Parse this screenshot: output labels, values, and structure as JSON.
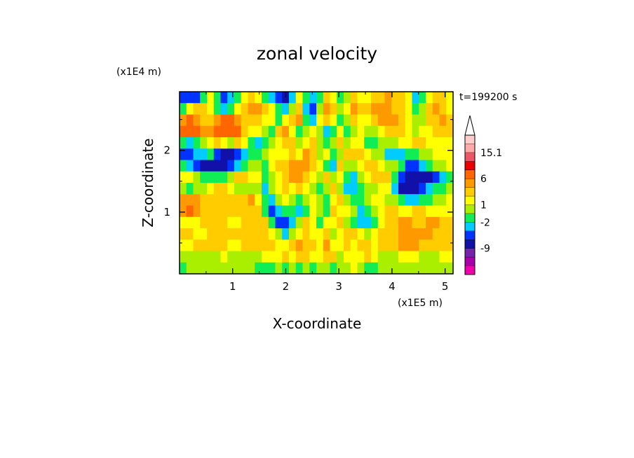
{
  "chart_data": {
    "type": "heatmap",
    "title": "zonal velocity",
    "xlabel": "X-coordinate",
    "ylabel": "Z-coordinate",
    "x_unit_label": "(x1E5 m)",
    "y_unit_label": "(x1E4 m)",
    "time_label": "t=199200 s",
    "xlim": [
      0,
      5.15
    ],
    "ylim": [
      0,
      2.95
    ],
    "x_ticks": [
      1,
      2,
      3,
      4,
      5
    ],
    "y_ticks": [
      1,
      2
    ],
    "colorbar": {
      "labeled_ticks": [
        "15.1",
        "6",
        "1",
        "-2",
        "-9"
      ],
      "levels": [
        {
          "color": "#ee00aa"
        },
        {
          "color": "#aa00aa"
        },
        {
          "color": "#7722aa"
        },
        {
          "color": "#1111aa"
        },
        {
          "color": "#0033ff"
        },
        {
          "color": "#00ccff"
        },
        {
          "color": "#11ee55"
        },
        {
          "color": "#aaee00"
        },
        {
          "color": "#ffff00"
        },
        {
          "color": "#ffcc00"
        },
        {
          "color": "#ff9900"
        },
        {
          "color": "#ff6600"
        },
        {
          "color": "#ee0000"
        },
        {
          "color": "#ee5566"
        },
        {
          "color": "#ffaaaa"
        },
        {
          "color": "#ffcccc"
        }
      ]
    },
    "field": [
      [
        4,
        4,
        4,
        6,
        8,
        6,
        4,
        5,
        6,
        8,
        9,
        8,
        6,
        5,
        4,
        3,
        5,
        8,
        6,
        5,
        6,
        9,
        8,
        6,
        7,
        9,
        8,
        8,
        9,
        9,
        10,
        9,
        9,
        8,
        5,
        6,
        8,
        9,
        9,
        8
      ],
      [
        6,
        8,
        9,
        9,
        8,
        6,
        5,
        6,
        8,
        9,
        10,
        10,
        9,
        8,
        6,
        5,
        7,
        9,
        5,
        4,
        7,
        10,
        9,
        7,
        8,
        10,
        9,
        9,
        10,
        10,
        10,
        9,
        9,
        8,
        6,
        7,
        9,
        10,
        9,
        8
      ],
      [
        10,
        11,
        10,
        9,
        9,
        10,
        11,
        11,
        10,
        9,
        9,
        9,
        8,
        8,
        6,
        8,
        9,
        10,
        6,
        5,
        8,
        9,
        8,
        6,
        7,
        9,
        8,
        8,
        9,
        10,
        10,
        10,
        9,
        8,
        7,
        7,
        9,
        9,
        10,
        9
      ],
      [
        11,
        11,
        11,
        10,
        10,
        11,
        11,
        11,
        11,
        9,
        8,
        8,
        7,
        6,
        9,
        10,
        8,
        6,
        7,
        8,
        7,
        5,
        6,
        8,
        6,
        7,
        8,
        7,
        7,
        8,
        9,
        9,
        9,
        8,
        7,
        8,
        8,
        9,
        9,
        9
      ],
      [
        6,
        5,
        6,
        7,
        8,
        9,
        8,
        7,
        9,
        8,
        6,
        5,
        6,
        7,
        8,
        9,
        9,
        7,
        8,
        9,
        7,
        6,
        7,
        9,
        7,
        8,
        8,
        6,
        6,
        7,
        7,
        7,
        8,
        8,
        9,
        9,
        8,
        8,
        8,
        8
      ],
      [
        4,
        4,
        5,
        5,
        6,
        4,
        3,
        3,
        4,
        5,
        6,
        6,
        7,
        8,
        8,
        8,
        9,
        8,
        10,
        9,
        7,
        8,
        6,
        7,
        9,
        9,
        9,
        8,
        7,
        7,
        5,
        5,
        5,
        6,
        6,
        7,
        7,
        8,
        8,
        8
      ],
      [
        6,
        5,
        4,
        3,
        3,
        3,
        3,
        4,
        5,
        6,
        7,
        7,
        6,
        8,
        9,
        9,
        10,
        10,
        10,
        9,
        8,
        6,
        5,
        9,
        7,
        7,
        8,
        9,
        9,
        8,
        7,
        7,
        6,
        4,
        4,
        5,
        6,
        7,
        7,
        8
      ],
      [
        8,
        8,
        7,
        6,
        6,
        6,
        6,
        7,
        9,
        9,
        8,
        8,
        6,
        7,
        8,
        9,
        10,
        10,
        9,
        8,
        7,
        9,
        7,
        8,
        6,
        5,
        7,
        8,
        9,
        9,
        9,
        6,
        4,
        3,
        3,
        3,
        3,
        4,
        5,
        6
      ],
      [
        7,
        6,
        7,
        7,
        8,
        9,
        9,
        8,
        7,
        7,
        7,
        7,
        5,
        7,
        8,
        9,
        8,
        9,
        8,
        7,
        6,
        7,
        9,
        7,
        5,
        5,
        6,
        7,
        7,
        8,
        8,
        5,
        3,
        3,
        3,
        4,
        5,
        6,
        6,
        7
      ],
      [
        10,
        10,
        10,
        9,
        9,
        9,
        9,
        9,
        9,
        9,
        10,
        8,
        6,
        5,
        7,
        8,
        7,
        6,
        7,
        8,
        7,
        6,
        8,
        9,
        7,
        6,
        6,
        7,
        8,
        8,
        7,
        7,
        6,
        5,
        5,
        6,
        6,
        7,
        7,
        8
      ],
      [
        10,
        11,
        10,
        9,
        9,
        9,
        9,
        9,
        9,
        9,
        9,
        9,
        6,
        4,
        5,
        6,
        6,
        5,
        6,
        8,
        7,
        6,
        9,
        8,
        8,
        7,
        5,
        6,
        7,
        8,
        9,
        9,
        8,
        8,
        9,
        9,
        8,
        8,
        8,
        8
      ],
      [
        8,
        8,
        8,
        9,
        9,
        9,
        9,
        8,
        8,
        9,
        9,
        9,
        9,
        6,
        4,
        4,
        5,
        7,
        9,
        8,
        6,
        8,
        8,
        9,
        7,
        6,
        5,
        5,
        6,
        8,
        9,
        9,
        10,
        10,
        9,
        9,
        10,
        10,
        9,
        9
      ],
      [
        9,
        9,
        8,
        8,
        9,
        9,
        9,
        9,
        9,
        9,
        9,
        9,
        9,
        8,
        7,
        5,
        7,
        8,
        9,
        8,
        8,
        9,
        7,
        8,
        9,
        9,
        8,
        7,
        8,
        9,
        9,
        9,
        10,
        10,
        10,
        10,
        10,
        9,
        9,
        9
      ],
      [
        8,
        8,
        9,
        9,
        9,
        9,
        9,
        8,
        8,
        9,
        9,
        9,
        9,
        9,
        8,
        8,
        9,
        10,
        9,
        9,
        8,
        10,
        8,
        8,
        9,
        8,
        9,
        9,
        8,
        9,
        9,
        9,
        10,
        10,
        10,
        9,
        9,
        9,
        9,
        9
      ],
      [
        7,
        7,
        7,
        7,
        7,
        7,
        8,
        7,
        7,
        7,
        7,
        7,
        8,
        8,
        8,
        9,
        8,
        9,
        9,
        8,
        8,
        9,
        9,
        7,
        8,
        8,
        8,
        9,
        8,
        7,
        7,
        7,
        8,
        8,
        8,
        7,
        7,
        7,
        8,
        8
      ],
      [
        6,
        7,
        7,
        7,
        7,
        7,
        7,
        7,
        7,
        7,
        7,
        6,
        6,
        6,
        7,
        6,
        7,
        6,
        7,
        6,
        7,
        7,
        6,
        7,
        7,
        8,
        7,
        6,
        6,
        7,
        7,
        7,
        7,
        7,
        7,
        7,
        7,
        7,
        7,
        7
      ]
    ]
  }
}
